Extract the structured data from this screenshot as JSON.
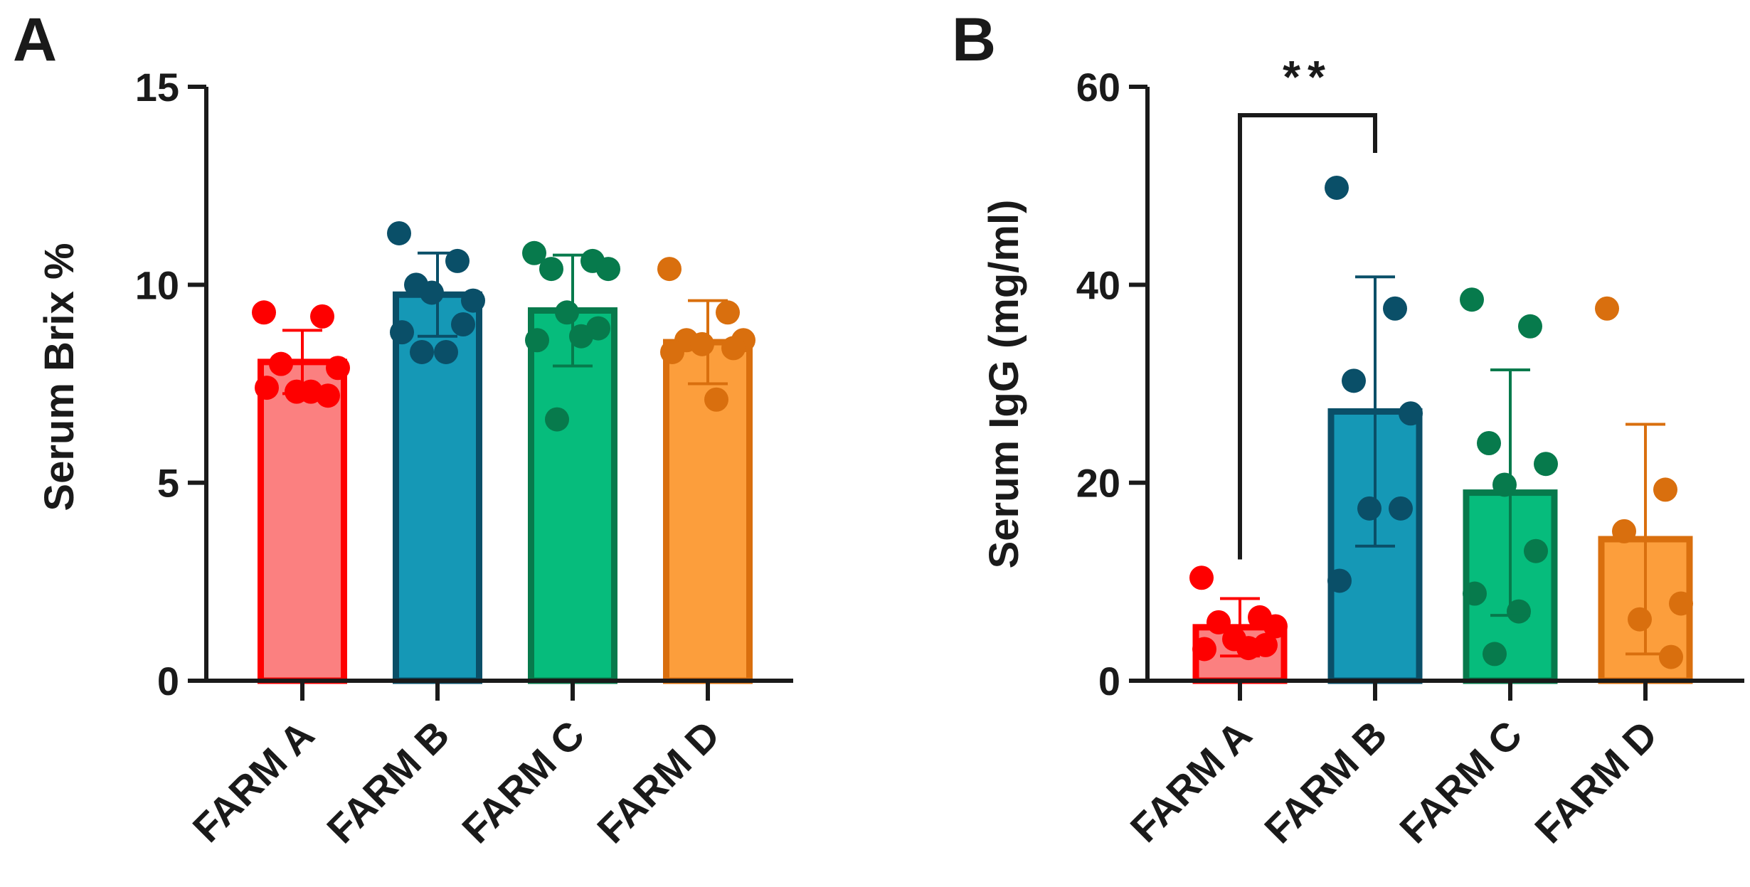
{
  "chart_data": [
    {
      "panel_label": "A",
      "type": "bar",
      "ylabel": "Serum Brix %",
      "ylim": [
        0,
        15
      ],
      "yticks": [
        0,
        5,
        10,
        15
      ],
      "categories": [
        "FARM A",
        "FARM B",
        "FARM C",
        "FARM D"
      ],
      "values": [
        8.05,
        9.75,
        9.35,
        8.55
      ],
      "error_sd": [
        0.8,
        1.05,
        1.4,
        1.05
      ],
      "points": [
        [
          9.3,
          9.2,
          8.0,
          7.9,
          7.3,
          7.2,
          7.4,
          7.3
        ],
        [
          11.3,
          10.6,
          10.0,
          9.6,
          9.8,
          9.0,
          8.8,
          8.3,
          8.3
        ],
        [
          10.8,
          10.6,
          10.4,
          10.4,
          9.3,
          8.9,
          8.6,
          8.7,
          6.6
        ],
        [
          10.4,
          9.3,
          8.6,
          8.6,
          8.5,
          8.4,
          8.3,
          7.1
        ]
      ],
      "colors": {
        "fill": [
          "#fb8080",
          "#1598b6",
          "#06bc7c",
          "#fc9e3c"
        ],
        "edge": [
          "#fe0000",
          "#0a4f68",
          "#077a4c",
          "#d96f0e"
        ]
      }
    },
    {
      "panel_label": "B",
      "type": "bar",
      "ylabel": "Serum IgG (mg/ml)",
      "ylim": [
        0,
        60
      ],
      "yticks": [
        0,
        20,
        40,
        60
      ],
      "categories": [
        "FARM A",
        "FARM B",
        "FARM C",
        "FARM D"
      ],
      "values": [
        5.4,
        27.2,
        19.0,
        14.3
      ],
      "error_sd": [
        2.9,
        13.6,
        12.4,
        11.6
      ],
      "points": [
        [
          10.4,
          6.4,
          5.9,
          5.5,
          4.2,
          3.6,
          3.2,
          3.3
        ],
        [
          49.8,
          37.6,
          30.3,
          27.0,
          17.4,
          17.4,
          10.1
        ],
        [
          38.5,
          35.8,
          24.0,
          21.9,
          19.8,
          13.1,
          8.8,
          7.0,
          2.7
        ],
        [
          37.6,
          19.3,
          15.1,
          7.8,
          6.2,
          2.4
        ]
      ],
      "significance": {
        "from": "FARM A",
        "to": "FARM B",
        "label": "**"
      },
      "colors": {
        "fill": [
          "#fb8080",
          "#1598b6",
          "#06bc7c",
          "#fc9e3c"
        ],
        "edge": [
          "#fe0000",
          "#0a4f68",
          "#077a4c",
          "#d96f0e"
        ]
      }
    }
  ]
}
